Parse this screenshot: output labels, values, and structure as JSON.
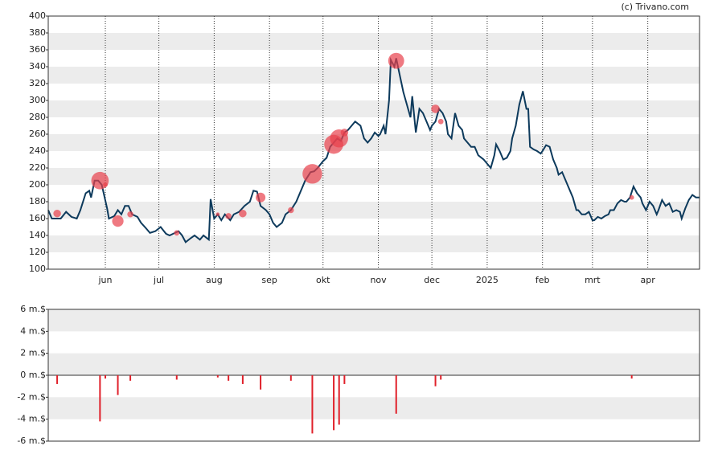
{
  "credit": "(c) Trivano.com",
  "chart_data": [
    {
      "type": "line",
      "x": [
        0,
        2,
        7,
        10,
        13,
        16,
        18,
        21,
        23,
        24,
        26,
        28,
        30,
        33,
        34,
        37,
        39,
        41,
        43,
        45,
        47,
        50,
        52,
        55,
        57,
        60,
        63,
        66,
        68,
        71,
        73,
        75,
        77,
        80,
        82,
        85,
        87,
        90,
        91,
        93,
        95,
        97,
        99,
        102,
        104,
        107,
        110,
        113,
        115,
        117,
        119,
        122,
        124,
        126,
        128,
        131,
        133,
        136,
        139,
        141,
        144,
        147,
        149,
        151,
        154,
        156,
        158,
        160,
        162,
        164,
        166,
        168,
        170,
        172,
        175,
        177,
        179,
        181,
        183,
        185,
        186,
        188,
        189,
        191,
        192,
        194,
        195,
        197,
        199,
        201,
        203,
        204,
        206,
        208,
        210,
        212,
        214,
        215,
        217,
        219,
        221,
        223,
        224,
        226,
        228,
        230,
        232,
        233,
        235,
        237,
        239,
        241,
        244,
        246,
        248,
        250,
        251,
        253,
        255,
        257,
        259,
        260,
        262,
        264,
        266,
        268,
        269,
        270,
        272,
        274,
        276,
        277,
        279,
        281,
        283,
        285,
        286,
        288,
        290,
        292,
        294,
        296,
        297,
        299,
        301,
        303,
        305,
        306,
        308,
        310,
        312,
        314,
        315,
        317,
        319,
        321,
        323,
        324,
        326,
        328,
        330,
        332,
        333,
        335,
        337,
        339,
        341,
        342,
        344,
        346,
        348,
        350,
        352,
        354,
        355,
        357,
        359,
        361,
        363,
        365
      ],
      "series": [
        {
          "color": "#0d3a5c",
          "values": [
            170,
            160,
            160,
            168,
            162,
            160,
            170,
            190,
            193,
            185,
            205,
            205,
            200,
            172,
            160,
            163,
            170,
            165,
            175,
            175,
            165,
            162,
            155,
            148,
            143,
            145,
            150,
            142,
            140,
            143,
            145,
            140,
            132,
            137,
            140,
            135,
            140,
            135,
            183,
            160,
            165,
            158,
            165,
            158,
            165,
            168,
            175,
            180,
            193,
            192,
            175,
            170,
            165,
            155,
            150,
            155,
            165,
            170,
            180,
            190,
            205,
            215,
            216,
            220,
            228,
            232,
            245,
            250,
            255,
            252,
            262,
            265,
            270,
            275,
            270,
            255,
            250,
            255,
            262,
            258,
            260,
            270,
            260,
            300,
            348,
            340,
            350,
            330,
            310,
            295,
            280,
            305,
            262,
            290,
            285,
            275,
            265,
            270,
            275,
            290,
            285,
            275,
            260,
            255,
            285,
            270,
            265,
            255,
            250,
            245,
            245,
            235,
            230,
            225,
            220,
            235,
            248,
            240,
            230,
            232,
            240,
            255,
            270,
            295,
            311,
            290,
            290,
            245,
            242,
            240,
            237,
            240,
            247,
            245,
            230,
            220,
            212,
            215,
            205,
            195,
            185,
            170,
            170,
            165,
            165,
            168,
            158,
            158,
            162,
            160,
            163,
            165,
            170,
            170,
            178,
            182,
            180,
            180,
            185,
            198,
            190,
            185,
            178,
            170,
            180,
            175,
            165,
            170,
            182,
            175,
            178,
            168,
            170,
            168,
            160,
            172,
            182,
            188,
            185,
            185
          ]
        }
      ],
      "bubbles": {
        "color": "#e8404c",
        "x": [
          5,
          29,
          32,
          39,
          46,
          72,
          95,
          101,
          109,
          119,
          136,
          148,
          160,
          163,
          166,
          195,
          217,
          220,
          327
        ],
        "values": [
          166,
          205,
          200,
          157,
          165,
          143,
          165,
          163,
          166,
          185,
          170,
          213,
          248,
          255,
          262,
          347,
          290,
          275,
          185
        ]
      },
      "xlim": [
        0,
        365
      ],
      "xticks": [
        {
          "value": 32,
          "label": "jun"
        },
        {
          "value": 62,
          "label": "jul"
        },
        {
          "value": 93,
          "label": "aug"
        },
        {
          "value": 124,
          "label": "sep"
        },
        {
          "value": 154,
          "label": "okt"
        },
        {
          "value": 185,
          "label": "nov"
        },
        {
          "value": 215,
          "label": "dec"
        },
        {
          "value": 246,
          "label": "2025"
        },
        {
          "value": 277,
          "label": "feb"
        },
        {
          "value": 305,
          "label": "mrt"
        },
        {
          "value": 336,
          "label": "apr"
        }
      ],
      "ylim": [
        100,
        400
      ],
      "yticks": [
        100,
        120,
        140,
        160,
        180,
        200,
        220,
        240,
        260,
        280,
        300,
        320,
        340,
        360,
        380,
        400
      ],
      "grid": true
    },
    {
      "type": "bar",
      "color": "#e0202a",
      "x": [
        5,
        29,
        32,
        39,
        46,
        72,
        95,
        101,
        109,
        119,
        136,
        148,
        160,
        163,
        166,
        195,
        217,
        220,
        327
      ],
      "values": [
        -0.8,
        -4.2,
        -0.3,
        -1.8,
        -0.5,
        -0.4,
        -0.2,
        -0.5,
        -0.8,
        -1.3,
        -0.5,
        -5.3,
        -5.0,
        -4.5,
        -0.8,
        -3.5,
        -1.0,
        -0.4,
        -0.3
      ],
      "xlim": [
        0,
        365
      ],
      "ylim": [
        -6,
        6
      ],
      "yticks": [
        {
          "value": -6,
          "label": "-6 m.$"
        },
        {
          "value": -4,
          "label": "-4 m.$"
        },
        {
          "value": -2,
          "label": "-2 m.$"
        },
        {
          "value": 0,
          "label": "0 m.$"
        },
        {
          "value": 2,
          "label": "2 m.$"
        },
        {
          "value": 4,
          "label": "4 m.$"
        },
        {
          "value": 6,
          "label": "6 m.$"
        }
      ],
      "grid": true
    }
  ]
}
